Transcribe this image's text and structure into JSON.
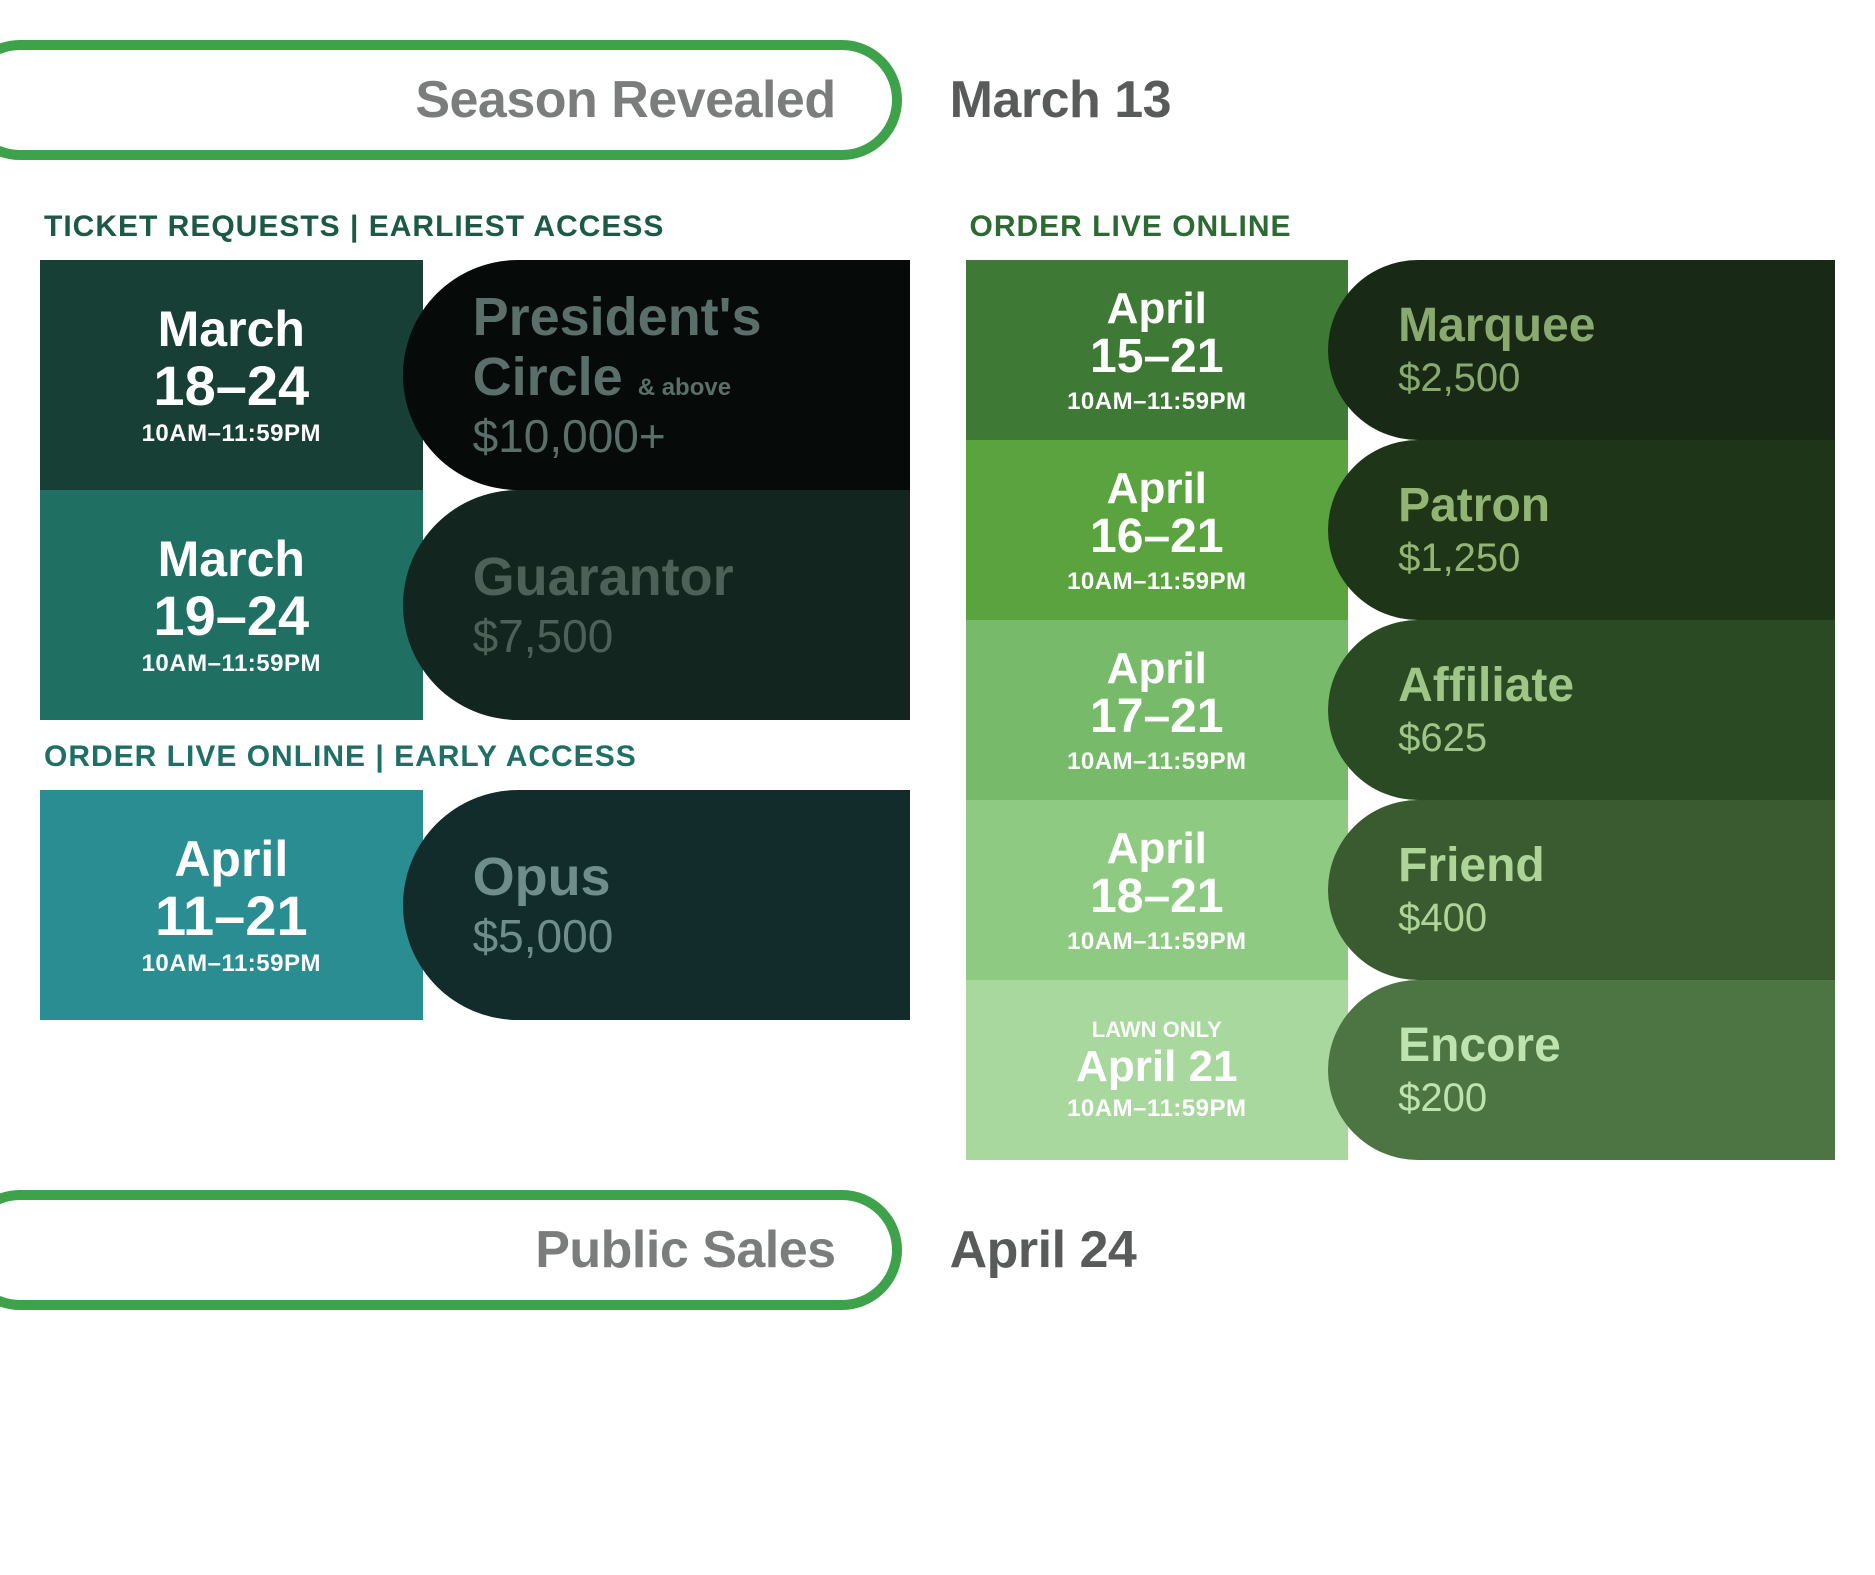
{
  "colors": {
    "banner_accent": "#3ea24a",
    "banner_label": "#7b7d7d",
    "banner_date": "#595b5b"
  },
  "banners": {
    "top": {
      "label": "Season Revealed",
      "date": "March 13"
    },
    "bottom": {
      "label": "Public Sales",
      "date": "April 24"
    }
  },
  "sections": {
    "earliest": {
      "label": "TICKET REQUESTS | EARLIEST ACCESS",
      "label_color": "#1d5a46"
    },
    "early": {
      "label": "ORDER LIVE ONLINE | EARLY ACCESS",
      "label_color": "#1f6f66"
    },
    "online": {
      "label": "ORDER LIVE ONLINE",
      "label_color": "#2d6a33"
    }
  },
  "tiers": {
    "presidents": {
      "month": "March",
      "range": "18–24",
      "time": "10AM–11:59PM",
      "name": "President's",
      "name2": "Circle",
      "suffix": "& above",
      "price": "$10,000+",
      "date_bg": "#173f36",
      "level_bg": "#060a08",
      "level_fg": "#5a6f69"
    },
    "guarantor": {
      "month": "March",
      "range": "19–24",
      "time": "10AM–11:59PM",
      "name": "Guarantor",
      "price": "$7,500",
      "date_bg": "#1f6f63",
      "level_bg": "#12261f",
      "level_fg": "#4e6158"
    },
    "opus": {
      "month": "April",
      "range": "11–21",
      "time": "10AM–11:59PM",
      "name": "Opus",
      "price": "$5,000",
      "date_bg": "#2a8d92",
      "level_bg": "#122c2c",
      "level_fg": "#6f8d8a"
    },
    "marquee": {
      "month": "April",
      "range": "15–21",
      "time": "10AM–11:59PM",
      "name": "Marquee",
      "price": "$2,500",
      "date_bg": "#3e7a36",
      "level_bg": "#182a15",
      "level_fg": "#8aa96f"
    },
    "patron": {
      "month": "April",
      "range": "16–21",
      "time": "10AM–11:59PM",
      "name": "Patron",
      "price": "$1,250",
      "date_bg": "#5aa33f",
      "level_bg": "#1f3518",
      "level_fg": "#93b573"
    },
    "affiliate": {
      "month": "April",
      "range": "17–21",
      "time": "10AM–11:59PM",
      "name": "Affiliate",
      "price": "$625",
      "date_bg": "#77bb6a",
      "level_bg": "#2a4a24",
      "level_fg": "#9fc587"
    },
    "friend": {
      "month": "April",
      "range": "18–21",
      "time": "10AM–11:59PM",
      "name": "Friend",
      "price": "$400",
      "date_bg": "#8fca82",
      "level_bg": "#3a5b2f",
      "level_fg": "#aed498"
    },
    "encore": {
      "pretitle": "LAWN ONLY",
      "month": "April 21",
      "time": "10AM–11:59PM",
      "name": "Encore",
      "price": "$200",
      "date_bg": "#a8d89e",
      "level_bg": "#4d7443",
      "level_fg": "#bfe3ae"
    }
  }
}
